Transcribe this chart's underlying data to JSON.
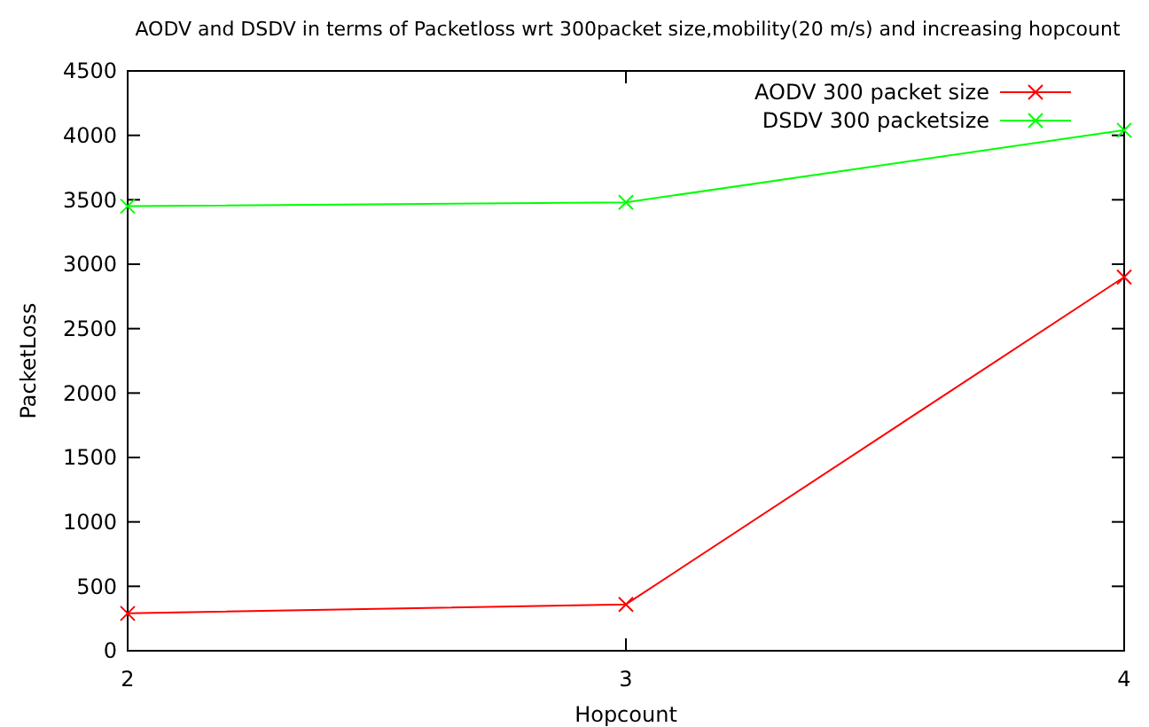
{
  "chart_data": {
    "type": "line",
    "title": "AODV and DSDV in terms of Packetloss wrt 300packet size,mobility(20 m/s) and increasing hopcount",
    "xlabel": "Hopcount",
    "ylabel": "PacketLoss",
    "x": [
      2,
      3,
      4
    ],
    "xlim": [
      2,
      4
    ],
    "xticks": [
      2,
      3,
      4
    ],
    "ylim": [
      0,
      4500
    ],
    "yticks": [
      0,
      500,
      1000,
      1500,
      2000,
      2500,
      3000,
      3500,
      4000,
      4500
    ],
    "grid": false,
    "legend": "top right",
    "marker": "cross",
    "series": [
      {
        "name": "AODV 300 packet size",
        "color": "#ff0000",
        "values": [
          290,
          360,
          2900
        ]
      },
      {
        "name": "DSDV 300 packetsize",
        "color": "#00ff00",
        "values": [
          3450,
          3480,
          4040
        ]
      }
    ]
  }
}
